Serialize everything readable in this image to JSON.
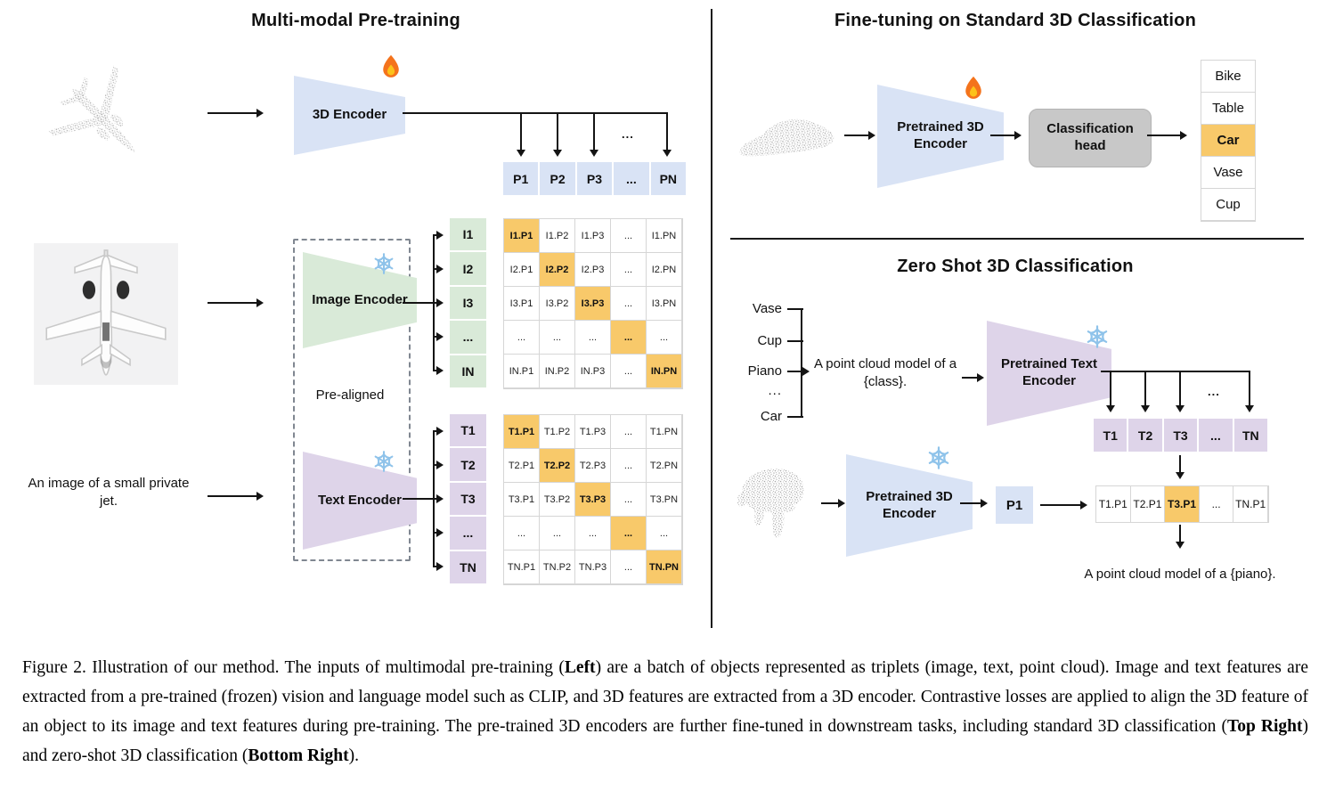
{
  "figure": {
    "left": {
      "title": "Multi-modal Pre-training",
      "encoder_3d_label": "3D Encoder",
      "image_encoder_label": "Image Encoder",
      "text_encoder_label": "Text Encoder",
      "pre_aligned_label": "Pre-aligned",
      "text_input": "An image of a small private jet.",
      "dots": "...",
      "p_row": [
        "P1",
        "P2",
        "P3",
        "...",
        "PN"
      ],
      "i_col": [
        "I1",
        "I2",
        "I3",
        "...",
        "IN"
      ],
      "t_col": [
        "T1",
        "T2",
        "T3",
        "...",
        "TN"
      ],
      "i_matrix": [
        [
          "I1.P1",
          "I1.P2",
          "I1.P3",
          "...",
          "I1.PN"
        ],
        [
          "I2.P1",
          "I2.P2",
          "I2.P3",
          "...",
          "I2.PN"
        ],
        [
          "I3.P1",
          "I3.P2",
          "I3.P3",
          "...",
          "I3.PN"
        ],
        [
          "...",
          "...",
          "...",
          "...",
          "..."
        ],
        [
          "IN.P1",
          "IN.P2",
          "IN.P3",
          "...",
          "IN.PN"
        ]
      ],
      "t_matrix": [
        [
          "T1.P1",
          "T1.P2",
          "T1.P3",
          "...",
          "T1.PN"
        ],
        [
          "T2.P1",
          "T2.P2",
          "T2.P3",
          "...",
          "T2.PN"
        ],
        [
          "T3.P1",
          "T3.P2",
          "T3.P3",
          "...",
          "T3.PN"
        ],
        [
          "...",
          "...",
          "...",
          "...",
          "..."
        ],
        [
          "TN.P1",
          "TN.P2",
          "TN.P3",
          "...",
          "TN.PN"
        ]
      ]
    },
    "top_right": {
      "title": "Fine-tuning on Standard 3D Classification",
      "encoder_label": "Pretrained 3D Encoder",
      "head_label": "Classification head",
      "classes": [
        "Bike",
        "Table",
        "Car",
        "Vase",
        "Cup"
      ],
      "highlight_index": 2
    },
    "bottom_right": {
      "title": "Zero Shot 3D Classification",
      "class_words": [
        "Vase",
        "Cup",
        "Piano",
        "...",
        "Car"
      ],
      "prompt": "A point cloud model of a {class}.",
      "text_encoder_label": "Pretrained Text Encoder",
      "encoder_label": "Pretrained 3D Encoder",
      "p1_label": "P1",
      "t_row": [
        "T1",
        "T2",
        "T3",
        "...",
        "TN"
      ],
      "sim_row": [
        "T1.P1",
        "T2.P1",
        "T3.P1",
        "...",
        "TN.P1"
      ],
      "sim_highlight_index": 2,
      "result": "A point cloud model of a {piano}.",
      "dots": "..."
    }
  },
  "icons": {
    "trainable": "fire-icon",
    "frozen": "snowflake-icon"
  },
  "colors": {
    "encoder_blue": "#d9e3f5",
    "encoder_green": "#d9ead8",
    "encoder_purple": "#ded4e9",
    "highlight_orange": "#f8c96a",
    "classification_head_gray": "#c8c8c8",
    "cell_border": "#d6d6d6",
    "point_cloud_gray": "#b5b5b5"
  },
  "caption": {
    "segments": [
      {
        "text": "Figure 2. Illustration of our method. The inputs of multimodal pre-training (",
        "bold": false
      },
      {
        "text": "Left",
        "bold": true
      },
      {
        "text": ") are a batch of objects represented as triplets (image, text, point cloud). Image and text features are extracted from a pre-trained (frozen) vision and language model such as CLIP, and 3D features are extracted from a 3D encoder. Contrastive losses are applied to align the 3D feature of an object to its image and text features during pre-training. The pre-trained 3D encoders are further fine-tuned in downstream tasks, including standard 3D classification (",
        "bold": false
      },
      {
        "text": "Top Right",
        "bold": true
      },
      {
        "text": ") and zero-shot 3D classification (",
        "bold": false
      },
      {
        "text": "Bottom Right",
        "bold": true
      },
      {
        "text": ").",
        "bold": false
      }
    ]
  }
}
